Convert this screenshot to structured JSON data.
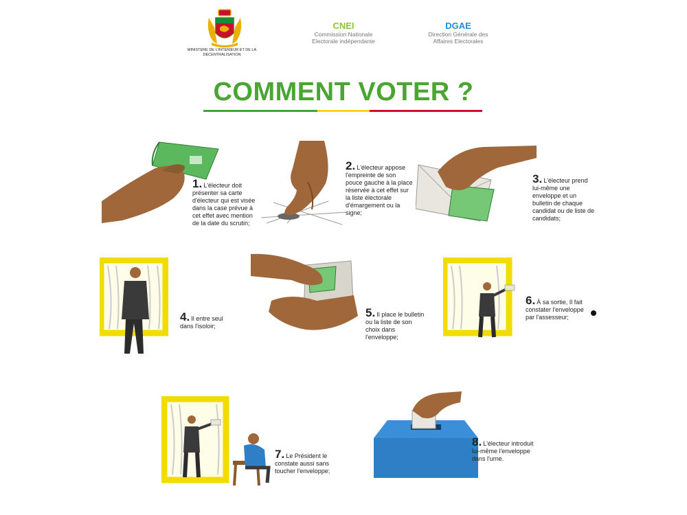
{
  "header": {
    "ministry": "MINISTERE DE L'INTERIEUR ET DE LA DÉCENTRALISATION",
    "cnei": {
      "code": "CNEI",
      "name_line1": "Commission Nationale",
      "name_line2": "Electorale indépendante",
      "color": "#8cc63f"
    },
    "dgae": {
      "code": "DGAE",
      "name_line1": "Direction Générale des",
      "name_line2": "Affaires Electorales",
      "color": "#1e8fd6"
    }
  },
  "title": "COMMENT VOTER ?",
  "flag_colors": [
    "#3aaa35",
    "#fcd116",
    "#ce1126"
  ],
  "steps": [
    {
      "num": "1.",
      "text": "L'électeur doit présenter sa carte d'électeur qui est visée dans la case prévue à cet effet avec mention de la date du scrutin;"
    },
    {
      "num": "2.",
      "text": "L'électeur appose l'empreinte de son pouce gauche à la place réservée à cet effet sur la liste électorale d'émargement ou la signe;"
    },
    {
      "num": "3.",
      "text": "L'électeur prend lui-même une enveloppe et un bulletin de chaque candidat ou de liste de candidats;"
    },
    {
      "num": "4.",
      "text": "Il entre seul dans l'isoloir;"
    },
    {
      "num": "5.",
      "text": "Il place le bulletin ou la liste de son choix dans l'enveloppe;"
    },
    {
      "num": "6.",
      "text": "À sa sortie, Il fait constater l'enveloppe par l'assesseur;"
    },
    {
      "num": "7.",
      "text": "Le Président le constate aussi sans toucher l'enveloppe;"
    },
    {
      "num": "8.",
      "text": "L'électeur introduit lui-même l'enveloppe dans l'urne."
    }
  ],
  "colors": {
    "title": "#4aa532",
    "skin": "#a0683a",
    "ballot": "#5cb85c",
    "booth": "#f2dc00",
    "urn": "#2f7fc6"
  }
}
